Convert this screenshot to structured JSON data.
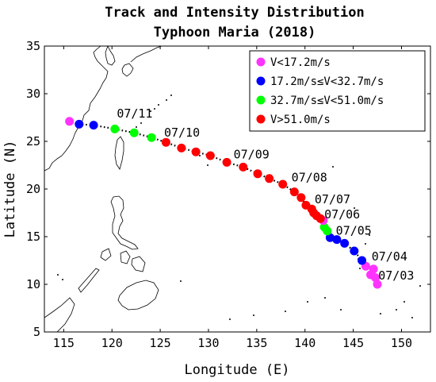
{
  "chart_data": {
    "type": "scatter",
    "title": "Track and Intensity Distribution",
    "subtitle": "Typhoon Maria (2018)",
    "xlabel": "Longitude (E)",
    "ylabel": "Latitude (N)",
    "xlim": [
      113,
      153
    ],
    "ylim": [
      5,
      35
    ],
    "xticks": [
      115,
      120,
      125,
      130,
      135,
      140,
      145,
      150
    ],
    "yticks": [
      5,
      10,
      15,
      20,
      25,
      30,
      35
    ],
    "legend_position": "top-right",
    "categories": [
      {
        "name": "V<17.2m/s",
        "color": "#ff33ff"
      },
      {
        "name": "17.2m/s≤V<32.7m/s",
        "color": "#0000ff"
      },
      {
        "name": "32.7m/s≤V<51.0m/s",
        "color": "#00ff00"
      },
      {
        "name": "V>51.0m/s",
        "color": "#ff0000"
      }
    ],
    "track": [
      {
        "lon": 147.5,
        "lat": 10.0,
        "cat": 0
      },
      {
        "lon": 147.3,
        "lat": 10.7,
        "cat": 0
      },
      {
        "lon": 146.8,
        "lat": 11.0,
        "cat": 0
      },
      {
        "lon": 147.1,
        "lat": 11.6,
        "cat": 0
      },
      {
        "lon": 146.3,
        "lat": 11.9,
        "cat": 0
      },
      {
        "lon": 145.9,
        "lat": 12.5,
        "cat": 1
      },
      {
        "lon": 145.1,
        "lat": 13.5,
        "cat": 1
      },
      {
        "lon": 144.1,
        "lat": 14.3,
        "cat": 1
      },
      {
        "lon": 143.3,
        "lat": 14.7,
        "cat": 1
      },
      {
        "lon": 142.6,
        "lat": 14.9,
        "cat": 1
      },
      {
        "lon": 142.3,
        "lat": 15.6,
        "cat": 2
      },
      {
        "lon": 142.0,
        "lat": 16.0,
        "cat": 2
      },
      {
        "lon": 141.9,
        "lat": 16.7,
        "cat": 0
      },
      {
        "lon": 141.6,
        "lat": 16.9,
        "cat": 3
      },
      {
        "lon": 141.2,
        "lat": 17.2,
        "cat": 3
      },
      {
        "lon": 140.9,
        "lat": 17.5,
        "cat": 3
      },
      {
        "lon": 140.7,
        "lat": 17.9,
        "cat": 3
      },
      {
        "lon": 140.1,
        "lat": 18.3,
        "cat": 3
      },
      {
        "lon": 139.6,
        "lat": 19.1,
        "cat": 3
      },
      {
        "lon": 138.9,
        "lat": 19.7,
        "cat": 3
      },
      {
        "lon": 137.7,
        "lat": 20.5,
        "cat": 3
      },
      {
        "lon": 136.3,
        "lat": 21.1,
        "cat": 3
      },
      {
        "lon": 135.1,
        "lat": 21.6,
        "cat": 3
      },
      {
        "lon": 133.6,
        "lat": 22.3,
        "cat": 3
      },
      {
        "lon": 131.9,
        "lat": 22.8,
        "cat": 3
      },
      {
        "lon": 130.2,
        "lat": 23.5,
        "cat": 3
      },
      {
        "lon": 128.7,
        "lat": 23.9,
        "cat": 3
      },
      {
        "lon": 127.2,
        "lat": 24.3,
        "cat": 3
      },
      {
        "lon": 125.6,
        "lat": 24.9,
        "cat": 3
      },
      {
        "lon": 124.1,
        "lat": 25.4,
        "cat": 2
      },
      {
        "lon": 122.3,
        "lat": 25.9,
        "cat": 2
      },
      {
        "lon": 120.3,
        "lat": 26.3,
        "cat": 2
      },
      {
        "lon": 118.1,
        "lat": 26.7,
        "cat": 1
      },
      {
        "lon": 116.6,
        "lat": 26.8,
        "cat": 1
      },
      {
        "lon": 115.6,
        "lat": 27.1,
        "cat": 0
      }
    ],
    "date_labels": [
      {
        "text": "07/03",
        "lon": 147.6,
        "lat": 10.5
      },
      {
        "text": "07/04",
        "lon": 146.9,
        "lat": 12.5
      },
      {
        "text": "07/05",
        "lon": 143.2,
        "lat": 15.2
      },
      {
        "text": "07/06",
        "lon": 142.0,
        "lat": 16.9
      },
      {
        "text": "07/07",
        "lon": 141.0,
        "lat": 18.5
      },
      {
        "text": "07/08",
        "lon": 138.6,
        "lat": 20.8
      },
      {
        "text": "07/09",
        "lon": 132.6,
        "lat": 23.2
      },
      {
        "text": "07/10",
        "lon": 125.4,
        "lat": 25.5
      },
      {
        "text": "07/11",
        "lon": 120.5,
        "lat": 27.5
      }
    ]
  }
}
